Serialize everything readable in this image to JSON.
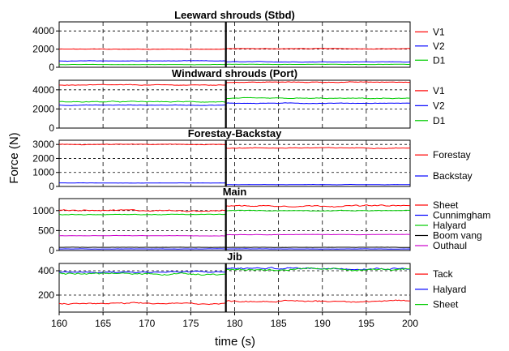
{
  "chart_data": {
    "type": "line",
    "ylabel": "Force (N)",
    "xlabel": "time (s)",
    "xlim": [
      160,
      200
    ],
    "xticks": [
      160,
      165,
      170,
      175,
      180,
      185,
      190,
      195,
      200
    ],
    "event_time": 179,
    "panels": [
      {
        "title": "Leeward shrouds (Stbd)",
        "ylim": [
          0,
          5000
        ],
        "yticks": [
          0,
          2000,
          4000
        ],
        "series": [
          {
            "name": "V1",
            "color": "#ff0000",
            "before": 2000,
            "after": 2050,
            "noise": 45
          },
          {
            "name": "V2",
            "color": "#0000ff",
            "before": 700,
            "after": 600,
            "noise": 40
          },
          {
            "name": "D1",
            "color": "#00cc00",
            "before": 300,
            "after": 320,
            "noise": 25
          }
        ]
      },
      {
        "title": "Windward shrouds (Port)",
        "ylim": [
          0,
          5000
        ],
        "yticks": [
          0,
          2000,
          4000
        ],
        "series": [
          {
            "name": "V1",
            "color": "#ff0000",
            "before": 4500,
            "after": 4800,
            "noise": 60
          },
          {
            "name": "V2",
            "color": "#0000ff",
            "before": 2400,
            "after": 2600,
            "noise": 50
          },
          {
            "name": "D1",
            "color": "#00cc00",
            "before": 2750,
            "after": 3100,
            "noise": 80
          }
        ]
      },
      {
        "title": "Forestay-Backstay",
        "ylim": [
          0,
          3300
        ],
        "yticks": [
          0,
          1000,
          2000,
          3000
        ],
        "series": [
          {
            "name": "Forestay",
            "color": "#ff0000",
            "before": 3000,
            "after": 2750,
            "noise": 40
          },
          {
            "name": "Backstay",
            "color": "#0000ff",
            "before": 250,
            "after": 130,
            "noise": 15
          }
        ]
      },
      {
        "title": "Main",
        "ylim": [
          0,
          1300
        ],
        "yticks": [
          0,
          500,
          1000
        ],
        "series": [
          {
            "name": "Sheet",
            "color": "#ff0000",
            "before": 1000,
            "after": 1120,
            "noise": 30
          },
          {
            "name": "Cunnimgham",
            "color": "#0000ff",
            "before": 40,
            "after": 40,
            "noise": 5
          },
          {
            "name": "Halyard",
            "color": "#00cc00",
            "before": 900,
            "after": 1000,
            "noise": 15
          },
          {
            "name": "Boom vang",
            "color": "#000000",
            "before": 80,
            "after": 80,
            "noise": 4
          },
          {
            "name": "Outhaul",
            "color": "#cc00cc",
            "before": 370,
            "after": 400,
            "noise": 8
          }
        ]
      },
      {
        "title": "Jib",
        "ylim": [
          60,
          460
        ],
        "yticks": [
          200,
          400
        ],
        "series": [
          {
            "name": "Tack",
            "color": "#ff0000",
            "before": 130,
            "after": 150,
            "noise": 10
          },
          {
            "name": "Halyard",
            "color": "#0000ff",
            "before": 390,
            "after": 420,
            "noise": 12
          },
          {
            "name": "Sheet",
            "color": "#00cc00",
            "before": 375,
            "after": 410,
            "noise": 14
          }
        ]
      }
    ]
  }
}
